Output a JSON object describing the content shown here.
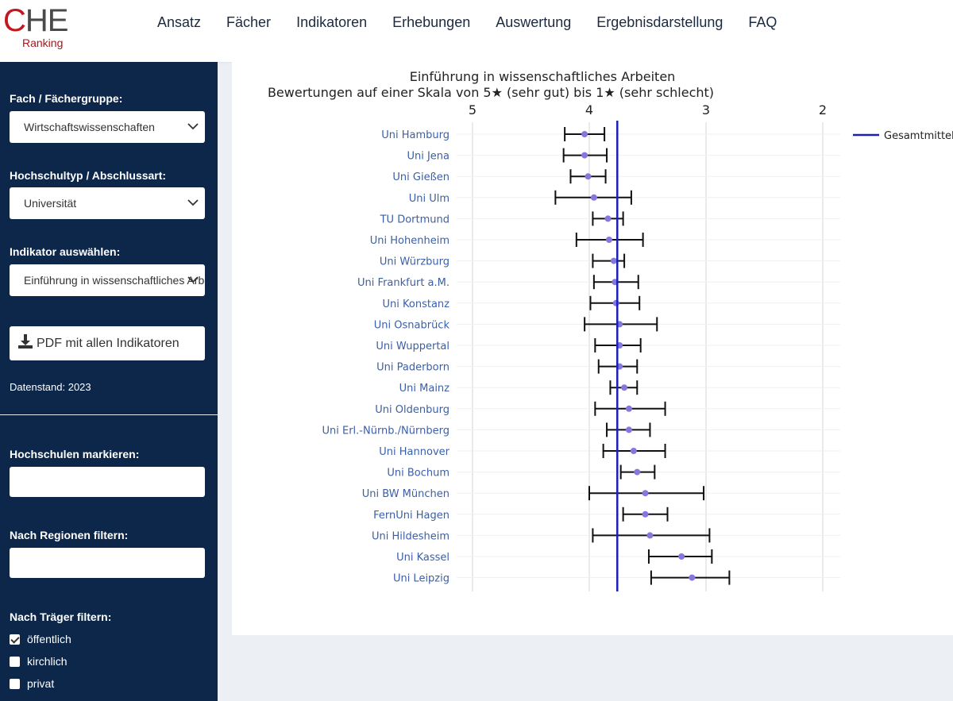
{
  "header": {
    "logo_mark_c": "C",
    "logo_mark_he": "HE",
    "logo_sub": "Ranking",
    "nav": [
      "Ansatz",
      "Fächer",
      "Indikatoren",
      "Erhebungen",
      "Auswertung",
      "Ergebnisdarstellung",
      "FAQ"
    ]
  },
  "sidebar": {
    "fach_label": "Fach / Fächergruppe:",
    "fach_value": "Wirtschaftswissenschaften",
    "typ_label": "Hochschultyp / Abschlussart:",
    "typ_value": "Universität",
    "indikator_label": "Indikator auswählen:",
    "indikator_value": "Einführung in wissenschaftliches Arbeiten",
    "pdf_button": "PDF mit allen Indikatoren",
    "datenstand": "Datenstand: 2023",
    "markieren_label": "Hochschulen markieren:",
    "regionen_label": "Nach Regionen filtern:",
    "traeger_label": "Nach Träger filtern:",
    "traeger_options": [
      {
        "label": "öffentlich",
        "checked": true
      },
      {
        "label": "kirchlich",
        "checked": false
      },
      {
        "label": "privat",
        "checked": false
      }
    ]
  },
  "colors": {
    "sidebar_bg": "#0c2749",
    "mean_line": "#1a1fb8",
    "point": "#8478e0",
    "label": "#3a5fa8",
    "logo_red": "#c5161d"
  },
  "chart_data": {
    "type": "scatter",
    "title": "Einführung in wissenschaftliches Arbeiten",
    "subtitle": "Bewertungen auf einer Skala von 5★ (sehr gut) bis 1★ (sehr schlecht)",
    "x_axis": {
      "reversed": true,
      "range": [
        5.1,
        1.85
      ],
      "ticks": [
        5,
        4,
        3,
        2
      ],
      "position": "top"
    },
    "mean": {
      "name": "Gesamtmittelwert",
      "value": 3.76
    },
    "legend_position": "right",
    "grid": true,
    "rows": [
      {
        "name": "Uni Hamburg",
        "value": 4.04,
        "low": 3.87,
        "high": 4.21
      },
      {
        "name": "Uni Jena",
        "value": 4.04,
        "low": 3.85,
        "high": 4.22
      },
      {
        "name": "Uni Gießen",
        "value": 4.01,
        "low": 3.86,
        "high": 4.16
      },
      {
        "name": "Uni Ulm",
        "value": 3.96,
        "low": 3.64,
        "high": 4.29
      },
      {
        "name": "TU Dortmund",
        "value": 3.84,
        "low": 3.71,
        "high": 3.97
      },
      {
        "name": "Uni Hohenheim",
        "value": 3.83,
        "low": 3.54,
        "high": 4.11
      },
      {
        "name": "Uni Würzburg",
        "value": 3.79,
        "low": 3.7,
        "high": 3.97
      },
      {
        "name": "Uni Frankfurt a.M.",
        "value": 3.78,
        "low": 3.58,
        "high": 3.96
      },
      {
        "name": "Uni Konstanz",
        "value": 3.77,
        "low": 3.57,
        "high": 3.99
      },
      {
        "name": "Uni Osnabrück",
        "value": 3.74,
        "low": 3.42,
        "high": 4.04
      },
      {
        "name": "Uni Wuppertal",
        "value": 3.74,
        "low": 3.56,
        "high": 3.95
      },
      {
        "name": "Uni Paderborn",
        "value": 3.74,
        "low": 3.59,
        "high": 3.92
      },
      {
        "name": "Uni Mainz",
        "value": 3.7,
        "low": 3.59,
        "high": 3.82
      },
      {
        "name": "Uni Oldenburg",
        "value": 3.66,
        "low": 3.35,
        "high": 3.95
      },
      {
        "name": "Uni Erl.-Nürnb./Nürnberg",
        "value": 3.66,
        "low": 3.48,
        "high": 3.85
      },
      {
        "name": "Uni Hannover",
        "value": 3.62,
        "low": 3.35,
        "high": 3.88
      },
      {
        "name": "Uni Bochum",
        "value": 3.59,
        "low": 3.44,
        "high": 3.73
      },
      {
        "name": "Uni BW München",
        "value": 3.52,
        "low": 3.02,
        "high": 4.0
      },
      {
        "name": "FernUni Hagen",
        "value": 3.52,
        "low": 3.33,
        "high": 3.71
      },
      {
        "name": "Uni Hildesheim",
        "value": 3.48,
        "low": 2.97,
        "high": 3.97
      },
      {
        "name": "Uni Kassel",
        "value": 3.21,
        "low": 2.95,
        "high": 3.49
      },
      {
        "name": "Uni Leipzig",
        "value": 3.12,
        "low": 2.8,
        "high": 3.47
      }
    ]
  }
}
